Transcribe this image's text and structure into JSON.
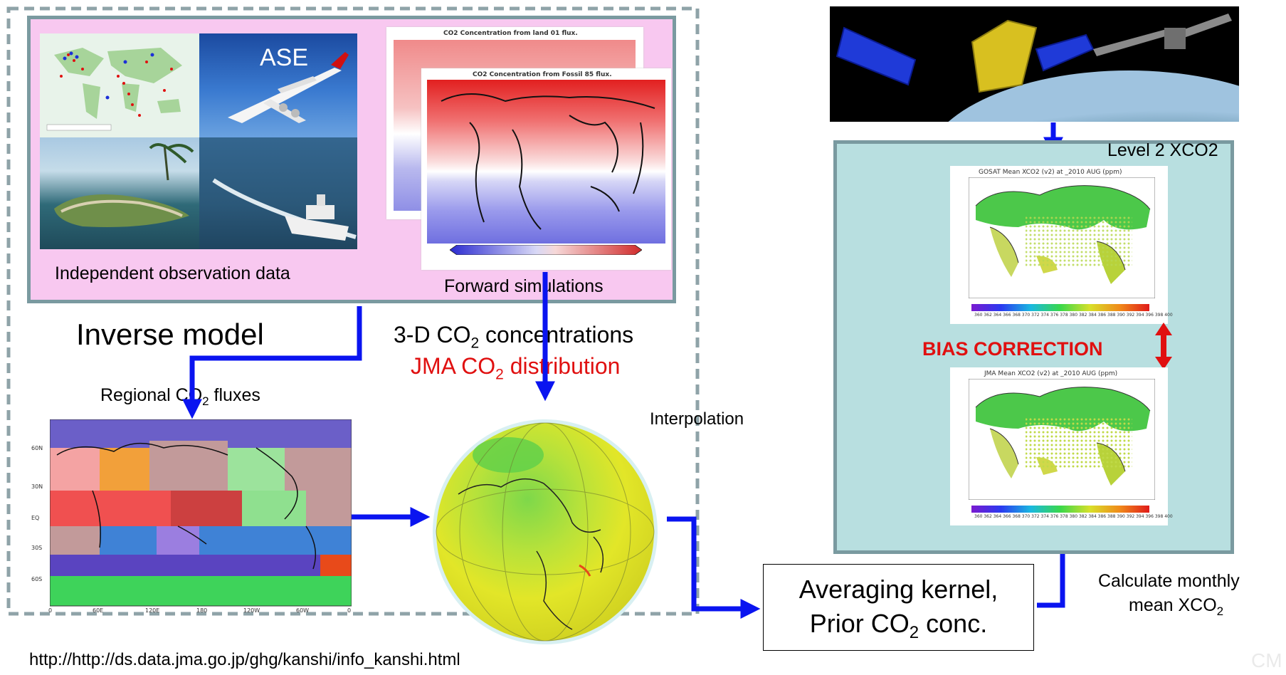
{
  "inverse_model": {
    "title": "Inverse model",
    "observations": {
      "photo_label": "ASE",
      "caption": "Independent observation data"
    },
    "forward": {
      "map_top_title": "CO2 Concentration from land 01 flux.",
      "map_front_title": "CO2 Concentration from Fossil 85 flux.",
      "caption": "Forward simulations"
    },
    "regional_label_pre": "Regional",
    "regional_label_sub": "2",
    "regional_label_post": " fluxes",
    "regional_label_co": " CO",
    "regional_map": {
      "lat_labels": [
        "60N",
        "30N",
        "EQ",
        "30S",
        "60S"
      ],
      "lon_labels": [
        "0",
        "60E",
        "120E",
        "180",
        "120W",
        "60W",
        "0"
      ]
    },
    "concentrations_pre": "3-D CO",
    "concentrations_sub": "2",
    "concentrations_post": " concentrations",
    "jma_pre": "JMA CO",
    "jma_sub": "2",
    "jma_post": " distribution"
  },
  "interpolation_label": "Interpolation",
  "averaging": {
    "line1": "Averaging kernel,",
    "line2_pre": "Prior CO",
    "line2_sub": "2",
    "line2_post": " conc."
  },
  "monthly": {
    "line1": "Calculate monthly",
    "line2_pre": "mean XCO",
    "line2_sub": "2"
  },
  "gosat": {
    "level_label": "Level 2 XCO2",
    "map1_title": "GOSAT Mean XCO2 (v2) at _2010 AUG (ppm)",
    "map2_title": "JMA Mean XCO2 (v2) at _2010 AUG (ppm)",
    "bias_label": "BIAS CORRECTION",
    "colorbar_labels": "360 362 364 366 368 370 372 374 376 378 380 382 384 386 388 390 392 394 396 398 400"
  },
  "url": "http://http://ds.data.jma.go.jp/ghg/kanshi/info_kanshi.html",
  "watermark": "CM",
  "colors": {
    "arrow": "#0a14f0",
    "pink_panel": "#f8c8f0",
    "teal_panel": "#b8dfe0",
    "panel_border": "#7a9aa0",
    "red_text": "#e01010",
    "bias_red": "#e01010"
  }
}
